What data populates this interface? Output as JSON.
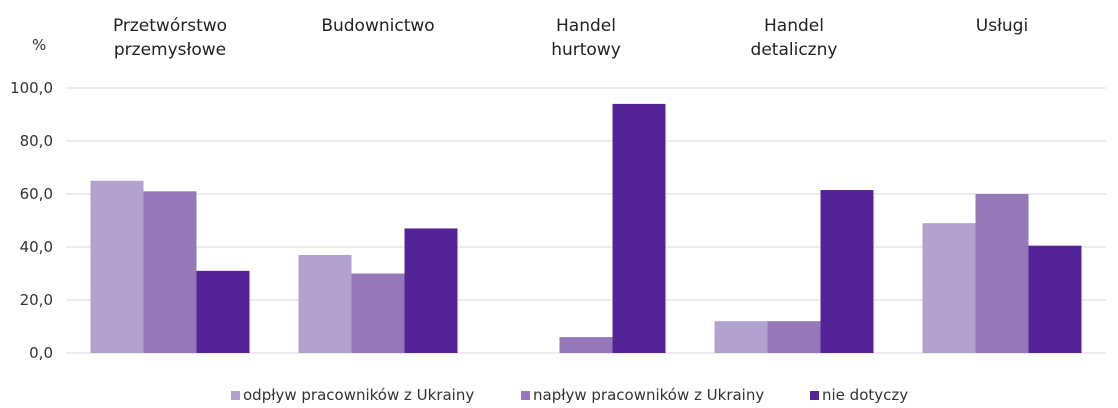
{
  "chart_data": {
    "type": "bar",
    "unit_label": "%",
    "categories": [
      [
        "Przetwórstwo",
        "przemysłowe"
      ],
      [
        "Budownictwo"
      ],
      [
        "Handel",
        "hurtowy"
      ],
      [
        "Handel",
        "detaliczny"
      ],
      [
        "Usługi"
      ]
    ],
    "series": [
      {
        "name": "odpływ pracowników z Ukrainy",
        "color": "#b3a2d0",
        "values": [
          65.0,
          37.0,
          0.0,
          12.0,
          49.0
        ]
      },
      {
        "name": "napływ pracowników z Ukrainy",
        "color": "#9578b7",
        "values": [
          61.0,
          30.0,
          6.0,
          12.0,
          60.0
        ]
      },
      {
        "name": "nie dotyczy",
        "color": "#542398",
        "values": [
          31.0,
          47.0,
          94.0,
          61.5,
          40.5
        ]
      }
    ],
    "ylim": [
      0,
      100
    ],
    "yticks": [
      "0,0",
      "20,0",
      "40,0",
      "60,0",
      "80,0",
      "100,0"
    ],
    "grid": true,
    "legend": "bottom"
  }
}
